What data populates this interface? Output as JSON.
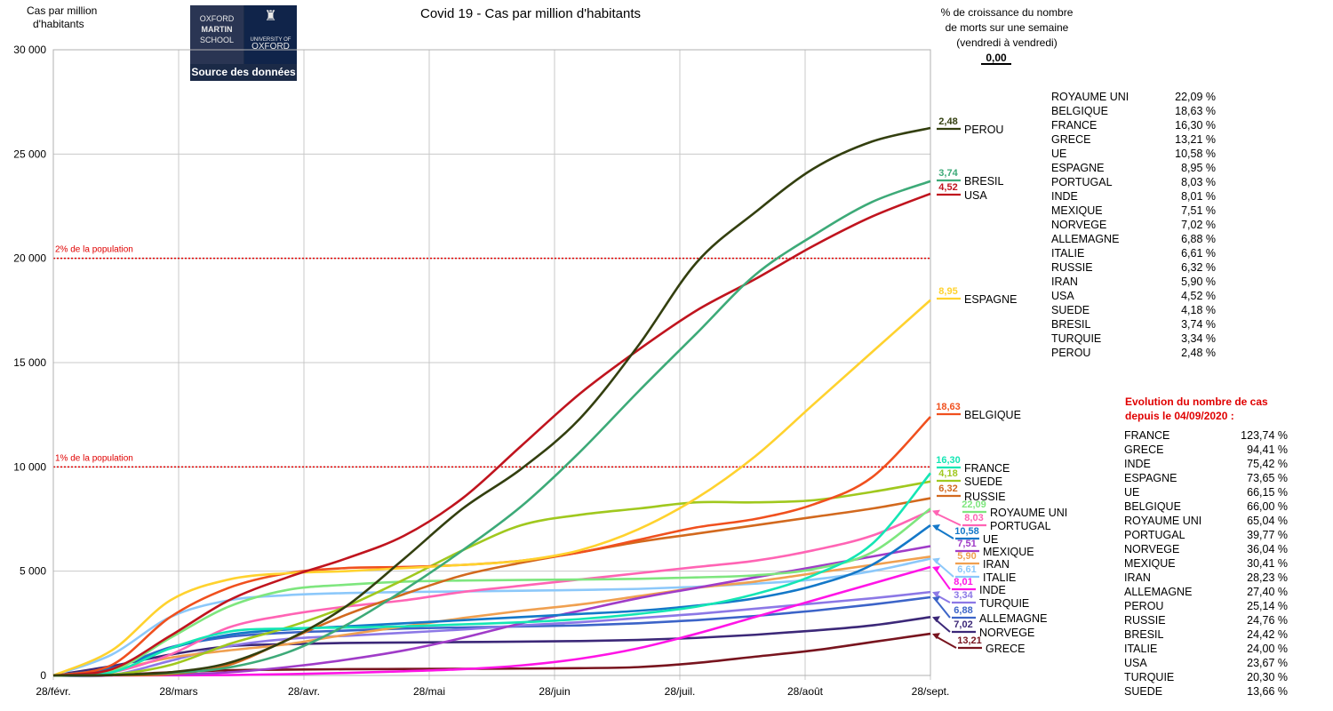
{
  "chart_data": {
    "type": "line",
    "title": "Covid 19 - Cas par million d'habitants",
    "ylabel": "Cas par million d'habitants",
    "ylim": [
      0,
      30000
    ],
    "yticks": [
      "0",
      "5 000",
      "10 000",
      "15 000",
      "20 000",
      "25 000",
      "30 000"
    ],
    "xticks": [
      "28/févr.",
      "28/mars",
      "28/avr.",
      "28/mai",
      "28/juin",
      "28/juil.",
      "28/août",
      "28/sept."
    ],
    "x": [
      0,
      14,
      28,
      42,
      56,
      70,
      84,
      98,
      112,
      126,
      140,
      154,
      168,
      182,
      196,
      210
    ],
    "thresholds": [
      {
        "label": "2% de la population",
        "value": 20000
      },
      {
        "label": "1% de la population",
        "value": 10000
      }
    ],
    "growth_header": "% de croissance du nombre de morts sur une semaine (vendredi à vendredi)",
    "growth_header_lines": [
      "% de croissance du nombre",
      "de morts sur une semaine",
      "(vendredi à vendredi)"
    ],
    "growth_header_value": "0,00",
    "series": [
      {
        "name": "PEROU",
        "growth": "2,48",
        "color": "#333f0f",
        "values": [
          0,
          20,
          150,
          600,
          1700,
          3300,
          5600,
          8000,
          9900,
          12300,
          15800,
          19800,
          22200,
          24300,
          25600,
          26250
        ]
      },
      {
        "name": "BRESIL",
        "growth": "3,74",
        "color": "#3daa78",
        "values": [
          0,
          30,
          120,
          380,
          1100,
          2400,
          4100,
          6000,
          8100,
          10700,
          13600,
          16400,
          19200,
          21100,
          22700,
          23700
        ]
      },
      {
        "name": "USA",
        "growth": "4,52",
        "color": "#c0141e",
        "values": [
          0,
          300,
          1900,
          3600,
          4700,
          5600,
          6700,
          8500,
          11000,
          13500,
          15600,
          17500,
          19000,
          20600,
          22000,
          23100
        ]
      },
      {
        "name": "ESPAGNE",
        "growth": "8,95",
        "color": "#ffd22e",
        "values": [
          0,
          1200,
          3600,
          4600,
          4900,
          5000,
          5150,
          5300,
          5500,
          6000,
          7000,
          8500,
          10500,
          13000,
          15500,
          18000
        ]
      },
      {
        "name": "BELGIQUE",
        "growth": "18,63",
        "color": "#f0501e",
        "values": [
          0,
          500,
          2800,
          4200,
          4900,
          5150,
          5200,
          5300,
          5500,
          5900,
          6500,
          7100,
          7500,
          8200,
          9500,
          12400
        ]
      },
      {
        "name": "FRANCE",
        "growth": "16,30",
        "color": "#14e6b4",
        "values": [
          0,
          150,
          1300,
          2100,
          2250,
          2300,
          2350,
          2450,
          2550,
          2700,
          2950,
          3300,
          3900,
          4800,
          6300,
          9700
        ]
      },
      {
        "name": "SUEDE",
        "growth": "4,18",
        "color": "#a0c81e",
        "values": [
          0,
          40,
          500,
          1500,
          2300,
          3300,
          4600,
          6000,
          7200,
          7700,
          8000,
          8300,
          8300,
          8400,
          8800,
          9300
        ]
      },
      {
        "name": "RUSSIE",
        "growth": "6,32",
        "color": "#d2691e",
        "values": [
          0,
          10,
          60,
          500,
          1700,
          2900,
          3900,
          4800,
          5400,
          5900,
          6400,
          6800,
          7200,
          7600,
          8000,
          8500
        ]
      },
      {
        "name": "ROYAUME UNI",
        "growth": "22,09",
        "color": "#7ee67e",
        "values": [
          0,
          200,
          1800,
          3300,
          4100,
          4350,
          4500,
          4550,
          4580,
          4600,
          4630,
          4700,
          4800,
          5100,
          5900,
          8000
        ]
      },
      {
        "name": "PORTUGAL",
        "growth": "8,03",
        "color": "#ff64b4",
        "values": [
          0,
          150,
          1000,
          2300,
          2900,
          3300,
          3600,
          4000,
          4300,
          4600,
          4900,
          5200,
          5500,
          6000,
          6700,
          7900
        ]
      },
      {
        "name": "UE",
        "growth": "10,58",
        "color": "#1478c8",
        "values": [
          0,
          350,
          1300,
          1950,
          2200,
          2350,
          2500,
          2650,
          2800,
          2950,
          3100,
          3350,
          3700,
          4300,
          5300,
          7200
        ]
      },
      {
        "name": "MEXIQUE",
        "growth": "7,51",
        "color": "#a03cc8",
        "values": [
          0,
          10,
          40,
          150,
          400,
          750,
          1200,
          1800,
          2500,
          3100,
          3700,
          4200,
          4700,
          5200,
          5700,
          6200
        ]
      },
      {
        "name": "IRAN",
        "growth": "5,90",
        "color": "#f0a050",
        "values": [
          0,
          250,
          850,
          1200,
          1500,
          1950,
          2350,
          2750,
          3100,
          3400,
          3800,
          4200,
          4500,
          4900,
          5300,
          5700
        ]
      },
      {
        "name": "ITALIE",
        "growth": "6,61",
        "color": "#8cc8fa",
        "values": [
          0,
          1000,
          2800,
          3600,
          3850,
          3950,
          4000,
          4030,
          4060,
          4100,
          4150,
          4250,
          4400,
          4600,
          5000,
          5600
        ]
      },
      {
        "name": "INDE",
        "growth": "8,01",
        "color": "#ff14e6",
        "values": [
          0,
          0,
          5,
          20,
          60,
          120,
          200,
          300,
          480,
          800,
          1300,
          2000,
          2800,
          3600,
          4400,
          5200
        ]
      },
      {
        "name": "TURQUIE",
        "growth": "3,34",
        "color": "#8c78e6",
        "values": [
          0,
          20,
          700,
          1400,
          1750,
          1900,
          2050,
          2200,
          2400,
          2550,
          2750,
          2950,
          3200,
          3450,
          3700,
          4000
        ]
      },
      {
        "name": "ALLEMAGNE",
        "growth": "6,88",
        "color": "#3c64c8",
        "values": [
          0,
          350,
          1350,
          1850,
          2050,
          2150,
          2250,
          2300,
          2350,
          2400,
          2500,
          2650,
          2850,
          3100,
          3400,
          3750
        ]
      },
      {
        "name": "NORVEGE",
        "growth": "7,02",
        "color": "#3c2878",
        "values": [
          0,
          450,
          1000,
          1400,
          1500,
          1560,
          1580,
          1600,
          1620,
          1650,
          1700,
          1800,
          1950,
          2150,
          2400,
          2800
        ]
      },
      {
        "name": "GRECE",
        "growth": "13,21",
        "color": "#78141e",
        "values": [
          0,
          30,
          150,
          250,
          280,
          300,
          310,
          320,
          330,
          350,
          400,
          600,
          900,
          1200,
          1600,
          2000
        ]
      }
    ],
    "growth_table": [
      {
        "name": "ROYAUME UNI",
        "value": "22,09 %"
      },
      {
        "name": "BELGIQUE",
        "value": "18,63 %"
      },
      {
        "name": "FRANCE",
        "value": "16,30 %"
      },
      {
        "name": "GRECE",
        "value": "13,21 %"
      },
      {
        "name": "UE",
        "value": "10,58 %"
      },
      {
        "name": "ESPAGNE",
        "value": "8,95 %"
      },
      {
        "name": "PORTUGAL",
        "value": "8,03 %"
      },
      {
        "name": "INDE",
        "value": "8,01 %"
      },
      {
        "name": "MEXIQUE",
        "value": "7,51 %"
      },
      {
        "name": "NORVEGE",
        "value": "7,02 %"
      },
      {
        "name": "ALLEMAGNE",
        "value": "6,88 %"
      },
      {
        "name": "ITALIE",
        "value": "6,61 %"
      },
      {
        "name": "RUSSIE",
        "value": "6,32 %"
      },
      {
        "name": "IRAN",
        "value": "5,90 %"
      },
      {
        "name": "USA",
        "value": "4,52 %"
      },
      {
        "name": "SUEDE",
        "value": "4,18 %"
      },
      {
        "name": "BRESIL",
        "value": "3,74 %"
      },
      {
        "name": "TURQUIE",
        "value": "3,34 %"
      },
      {
        "name": "PEROU",
        "value": "2,48 %"
      }
    ],
    "evolution_title_lines": [
      "Evolution du nombre de cas",
      "depuis le 04/09/2020 :"
    ],
    "evolution_title_color": "#e00000",
    "evolution_table": [
      {
        "name": "FRANCE",
        "value": "123,74 %"
      },
      {
        "name": "GRECE",
        "value": "94,41 %"
      },
      {
        "name": "INDE",
        "value": "75,42 %"
      },
      {
        "name": "ESPAGNE",
        "value": "73,65 %"
      },
      {
        "name": "UE",
        "value": "66,15 %"
      },
      {
        "name": "BELGIQUE",
        "value": "66,00 %"
      },
      {
        "name": "ROYAUME UNI",
        "value": "65,04 %"
      },
      {
        "name": "PORTUGAL",
        "value": "39,77 %"
      },
      {
        "name": "NORVEGE",
        "value": "36,04 %"
      },
      {
        "name": "MEXIQUE",
        "value": "30,41 %"
      },
      {
        "name": "IRAN",
        "value": "28,23 %"
      },
      {
        "name": "ALLEMAGNE",
        "value": "27,40 %"
      },
      {
        "name": "PEROU",
        "value": "25,14 %"
      },
      {
        "name": "RUSSIE",
        "value": "24,76 %"
      },
      {
        "name": "BRESIL",
        "value": "24,42 %"
      },
      {
        "name": "ITALIE",
        "value": "24,00 %"
      },
      {
        "name": "USA",
        "value": "23,67 %"
      },
      {
        "name": "TURQUIE",
        "value": "20,30 %"
      },
      {
        "name": "SUEDE",
        "value": "13,66 %"
      }
    ]
  },
  "logo": {
    "lines": [
      "OXFORD",
      "MARTIN",
      "SCHOOL"
    ],
    "university": [
      "UNIVERSITY OF",
      "OXFORD"
    ],
    "source_label": "Source des données"
  }
}
